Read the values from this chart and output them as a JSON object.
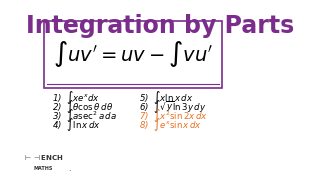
{
  "title": "Integration by Parts",
  "title_color": "#7B2D8B",
  "title_fontsize": 17,
  "bg_color": "#FFFFFF",
  "formula": "$\\int uv' = uv - \\int vu'$",
  "formula_fontsize": 14,
  "box_color": "#7B2D8B",
  "items_left": [
    "1)  $\\int xe^x dx$",
    "2)  $\\int \\theta \\cos\\theta\\, d\\theta$",
    "3)  $\\int a\\sec^2 a\\, da$",
    "4)  $\\int \\ln x\\, dx$"
  ],
  "items_right_black": [
    "5)  $\\int x \\ln x\\, dx$",
    "6)  $\\int \\sqrt{y} \\ln 3y\\, dy$"
  ],
  "items_right_orange": [
    "7)  $\\int x^2 \\sin 2x\\, dx$",
    "8)  $\\int e^x \\sin x\\, dx$"
  ],
  "item_fontsize": 6.2,
  "logo_color": "#333333"
}
